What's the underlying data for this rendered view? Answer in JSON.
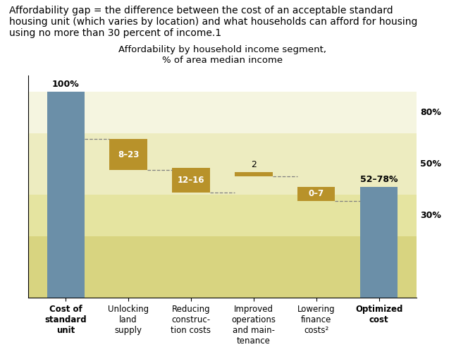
{
  "chart_data": {
    "type": "bar",
    "title": "Affordability gap = the difference between the cost of an acceptable standard\nhousing unit (which varies by location) and what households can afford for housing\nusing no more than 30 percent of income.1",
    "subtitle": "Affordability by household income segment,\n% of area median income",
    "categories": [
      "Cost of\nstandard\nunit",
      "Unlocking\nland\nsupply",
      "Reducing\nconstruc-\ntion costs",
      "Improved\noperations\nand main-\ntenance",
      "Lowering\nfinance\ncosts²",
      "Optimized\ncost"
    ],
    "values": [
      100,
      15,
      12,
      2,
      7,
      54
    ],
    "bottoms": [
      0,
      62,
      51,
      59,
      47,
      0
    ],
    "value_labels": [
      "100%",
      "8–23",
      "12–16",
      "2",
      "0–7",
      "52–78%"
    ],
    "colors": [
      "#6b8fa8",
      "#b8922a",
      "#b8922a",
      "#b8922a",
      "#b8922a",
      "#6b8fa8"
    ],
    "bands": [
      {
        "from": 80,
        "to": 100,
        "label": "80%",
        "color": "#f5f5e0"
      },
      {
        "from": 50,
        "to": 80,
        "label": "50%",
        "color": "#edecc0"
      },
      {
        "from": 30,
        "to": 50,
        "label": "30%",
        "color": "#e5e4a0"
      },
      {
        "from": 0,
        "to": 30,
        "color": "#d8d480"
      }
    ],
    "ylim": [
      0,
      108
    ],
    "tick_labels": "x",
    "data_labels": true
  }
}
